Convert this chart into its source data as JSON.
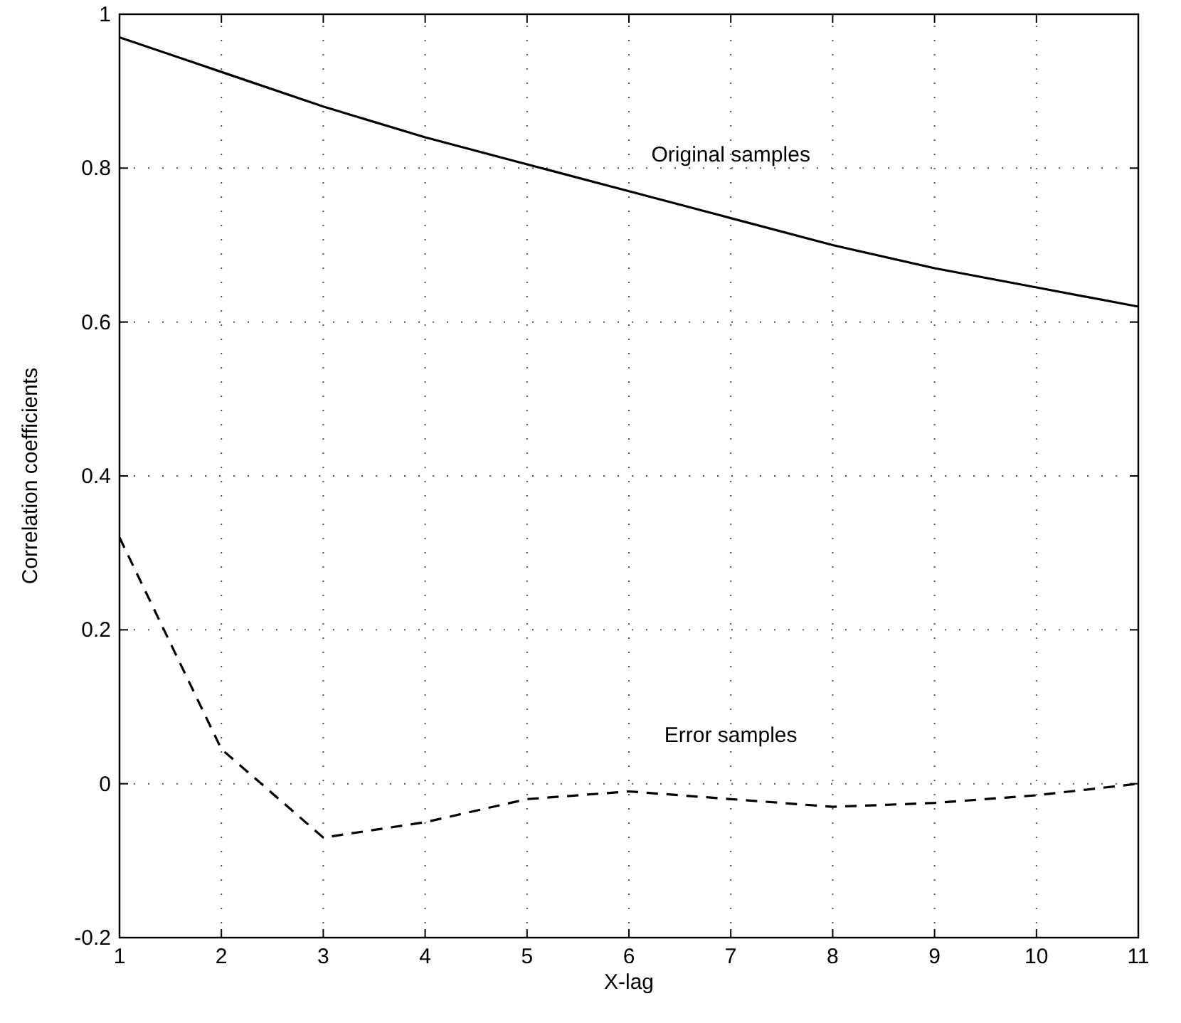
{
  "chart_data": {
    "type": "line",
    "xlabel": "X-lag",
    "ylabel": "Correlation coefficients",
    "x": [
      1,
      2,
      3,
      4,
      5,
      6,
      7,
      8,
      9,
      10,
      11
    ],
    "series": [
      {
        "name": "Original samples",
        "color": "#000000",
        "line_style": "solid",
        "values": [
          0.97,
          0.925,
          0.88,
          0.84,
          0.805,
          0.77,
          0.735,
          0.7,
          0.67,
          0.645,
          0.62
        ]
      },
      {
        "name": "Error samples",
        "color": "#000000",
        "line_style": "dashed",
        "values": [
          0.32,
          0.045,
          -0.07,
          -0.05,
          -0.02,
          -0.01,
          -0.02,
          -0.03,
          -0.025,
          -0.015,
          0.0
        ]
      }
    ],
    "xlim": [
      1,
      11
    ],
    "xticks": [
      1,
      2,
      3,
      4,
      5,
      6,
      7,
      8,
      9,
      10,
      11
    ],
    "ylim": [
      -0.2,
      1
    ],
    "yticks": [
      -0.2,
      0,
      0.2,
      0.4,
      0.6,
      0.8,
      1
    ],
    "grid": true,
    "marker": "none"
  }
}
